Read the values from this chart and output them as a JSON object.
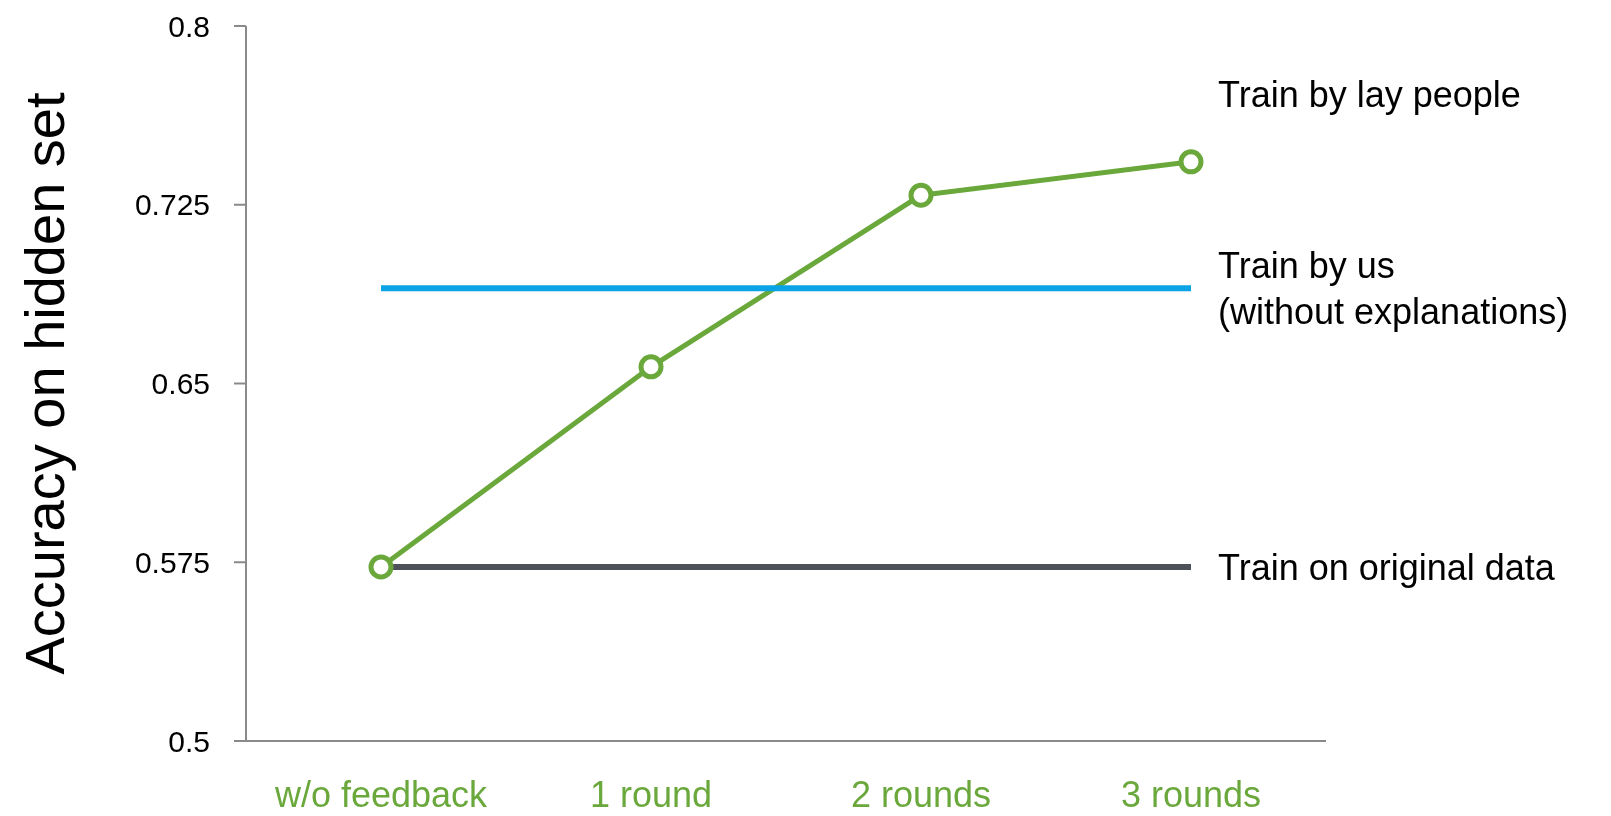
{
  "chart_data": {
    "type": "line",
    "ylabel": "Accuracy on hidden set",
    "categories": [
      "w/o feedback",
      "1 round",
      "2 rounds",
      "3 rounds"
    ],
    "series": [
      {
        "name": "Train by lay people",
        "color": "#6aa83c",
        "values": [
          0.573,
          0.657,
          0.729,
          0.743
        ],
        "marker": "circle"
      },
      {
        "name": "Train by us\n(without explanations)",
        "color": "#0aa3e6",
        "values": [
          0.69,
          0.69,
          0.69,
          0.69
        ],
        "marker": "none"
      },
      {
        "name": "Train on original data",
        "color": "#4d525a",
        "values": [
          0.573,
          0.573,
          0.573,
          0.573
        ],
        "marker": "none"
      }
    ],
    "ylim": [
      0.5,
      0.8
    ],
    "yticks": [
      0.5,
      0.575,
      0.65,
      0.725,
      0.8
    ]
  }
}
